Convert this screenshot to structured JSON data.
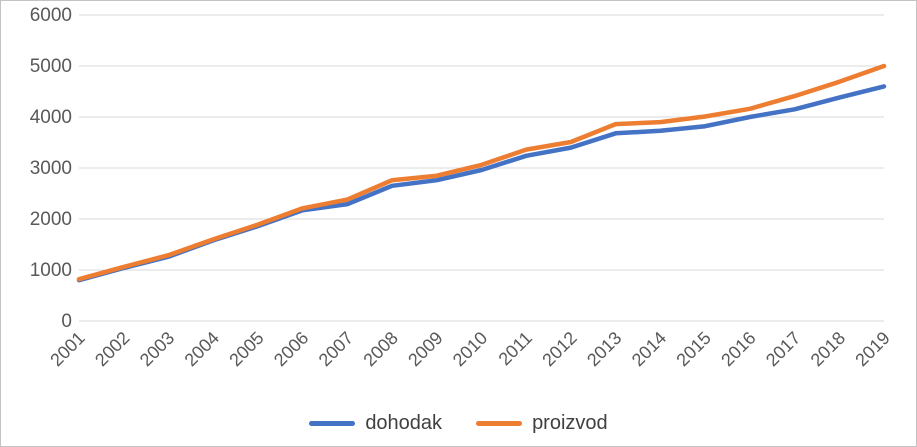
{
  "window": {
    "background": "#ffffff",
    "border_color": "#c3c3c3"
  },
  "chart_data": {
    "type": "line",
    "title": "",
    "xlabel": "",
    "ylabel": "",
    "categories": [
      "2001",
      "2002",
      "2003",
      "2004",
      "2005",
      "2006",
      "2007",
      "2008",
      "2009",
      "2010",
      "2011",
      "2012",
      "2013",
      "2014",
      "2015",
      "2016",
      "2017",
      "2018",
      "2019"
    ],
    "series": [
      {
        "name": "dohodak",
        "color": "#4472C4",
        "values": [
          800,
          1040,
          1260,
          1580,
          1860,
          2170,
          2290,
          2650,
          2760,
          2960,
          3240,
          3400,
          3680,
          3730,
          3820,
          4000,
          4150,
          4380,
          4600
        ]
      },
      {
        "name": "proizvod",
        "color": "#ED7D31",
        "values": [
          820,
          1060,
          1290,
          1600,
          1890,
          2210,
          2380,
          2760,
          2850,
          3060,
          3360,
          3510,
          3860,
          3900,
          4010,
          4160,
          4410,
          4690,
          5000
        ]
      }
    ],
    "ylim": [
      0,
      6000
    ],
    "yticks": [
      0,
      1000,
      2000,
      3000,
      4000,
      5000,
      6000
    ],
    "grid": "horizontal",
    "gridline_color": "#d9d9d9",
    "axis_label_color": "#595959",
    "x_label_rotation_deg": -45,
    "line_width": 4.5,
    "legend_position": "bottom"
  }
}
